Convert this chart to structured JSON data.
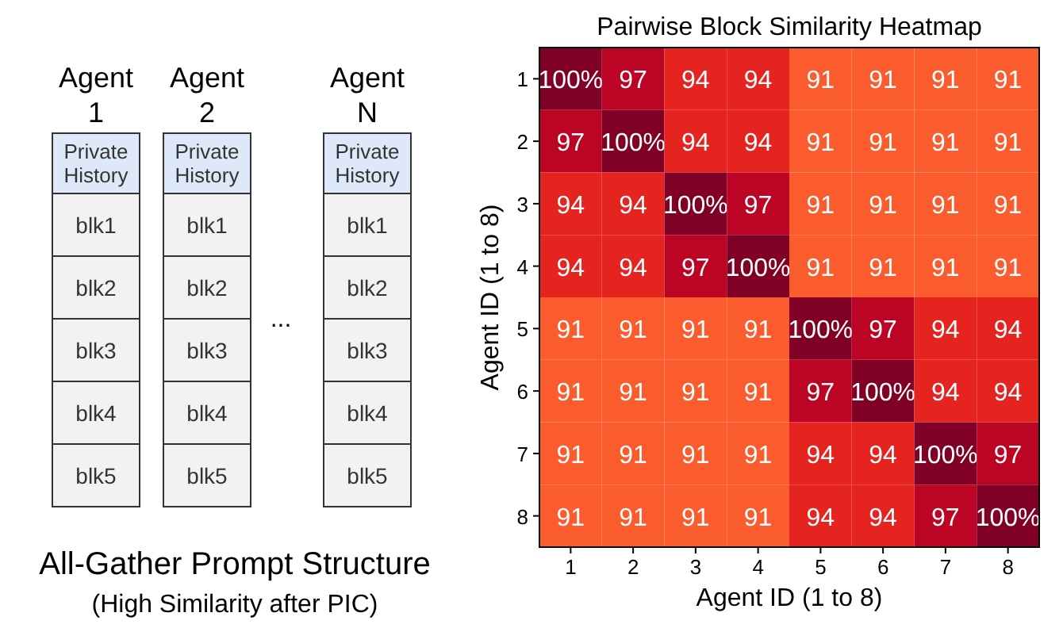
{
  "chart_data": [
    {
      "type": "other",
      "title": "All-Gather Prompt Structure",
      "subtitle": "(High Similarity after PIC)",
      "categories": [
        "Agent 1",
        "Agent 2",
        "Agent N"
      ],
      "y_categories": [
        "Private History",
        "blk1",
        "blk2",
        "blk3",
        "blk4",
        "blk5"
      ],
      "annotations": [
        "..."
      ]
    },
    {
      "type": "heatmap",
      "title": "Pairwise Block Similarity Heatmap",
      "xlabel": "Agent ID (1 to 8)",
      "ylabel": "Agent ID (1 to 8)",
      "categories": [
        "1",
        "2",
        "3",
        "4",
        "5",
        "6",
        "7",
        "8"
      ],
      "y_categories": [
        "1",
        "2",
        "3",
        "4",
        "5",
        "6",
        "7",
        "8"
      ],
      "cells": [
        [
          100,
          97,
          94,
          94,
          91,
          91,
          91,
          91
        ],
        [
          97,
          100,
          94,
          94,
          91,
          91,
          91,
          91
        ],
        [
          94,
          94,
          100,
          97,
          91,
          91,
          91,
          91
        ],
        [
          94,
          94,
          97,
          100,
          91,
          91,
          91,
          91
        ],
        [
          91,
          91,
          91,
          91,
          100,
          97,
          94,
          94
        ],
        [
          91,
          91,
          91,
          91,
          97,
          100,
          94,
          94
        ],
        [
          91,
          91,
          91,
          91,
          94,
          94,
          100,
          97
        ],
        [
          91,
          91,
          91,
          91,
          94,
          94,
          97,
          100
        ]
      ],
      "cell_labels": [
        [
          "100%",
          "97",
          "94",
          "94",
          "91",
          "91",
          "91",
          "91"
        ],
        [
          "97",
          "100%",
          "94",
          "94",
          "91",
          "91",
          "91",
          "91"
        ],
        [
          "94",
          "94",
          "100%",
          "97",
          "91",
          "91",
          "91",
          "91"
        ],
        [
          "94",
          "94",
          "97",
          "100%",
          "91",
          "91",
          "91",
          "91"
        ],
        [
          "91",
          "91",
          "91",
          "91",
          "100%",
          "97",
          "94",
          "94"
        ],
        [
          "91",
          "91",
          "91",
          "91",
          "97",
          "100%",
          "94",
          "94"
        ],
        [
          "91",
          "91",
          "91",
          "91",
          "94",
          "94",
          "100%",
          "97"
        ],
        [
          "91",
          "91",
          "91",
          "91",
          "94",
          "94",
          "97",
          "100%"
        ]
      ]
    }
  ]
}
